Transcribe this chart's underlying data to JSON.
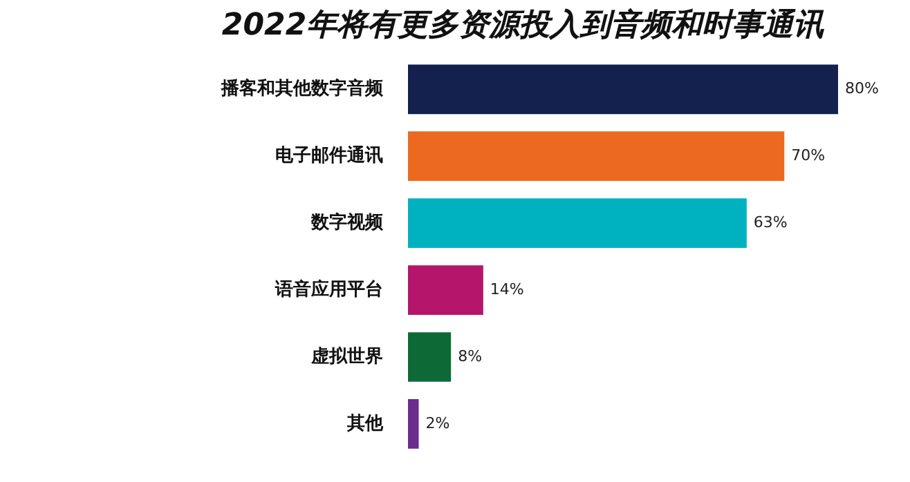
{
  "chart_data": {
    "type": "bar",
    "orientation": "horizontal",
    "title": "2022年将有更多资源投入到音频和时事通讯",
    "categories": [
      "播客和其他数字音频",
      "电子邮件通讯",
      "数字视频",
      "语音应用平台",
      "虚拟世界",
      "其他"
    ],
    "values": [
      80,
      70,
      63,
      14,
      8,
      2
    ],
    "colors": [
      "#14214f",
      "#ec6a1f",
      "#00b2bf",
      "#b5156a",
      "#0d6a36",
      "#6a2c8e"
    ],
    "value_labels": [
      "80%",
      "70%",
      "63%",
      "14%",
      "8%",
      "2%"
    ]
  }
}
